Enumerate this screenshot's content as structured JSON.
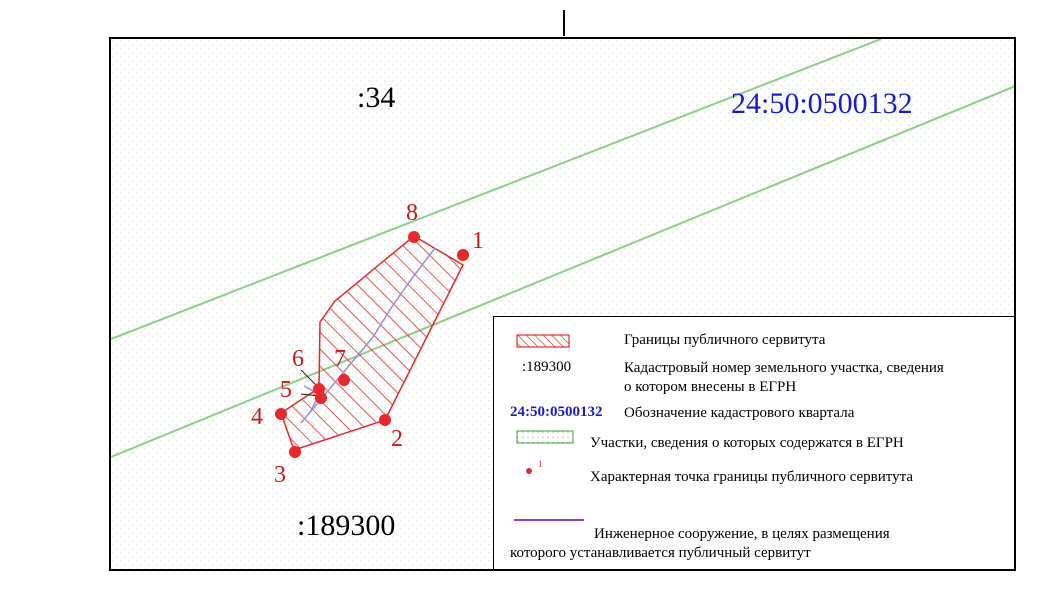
{
  "map": {
    "labels": {
      "parcel_neighbor": ":34",
      "quarter": "24:50:0500132",
      "parcel_main": ":189300"
    },
    "points": [
      "1",
      "2",
      "3",
      "4",
      "5",
      "6",
      "7",
      "8"
    ],
    "colors": {
      "servitude": "#e8282a",
      "parcel_lines": "#8fce8a",
      "quarter_text": "#1a1ad6",
      "engineering": "#9a3ac9"
    }
  },
  "legend": {
    "servitude_boundary": "Границы публичного сервитута",
    "cadastral_code_example": ":189300",
    "cadastral_number_line1": "Кадастровый номер  земельного участка, сведения",
    "cadastral_number_line2": "о котором внесены  в ЕГРН",
    "quarter_code_example": "24:50:0500132",
    "quarter_designation": "Обозначение кадастрового квартала",
    "parcels_in_registry": "Участки,  сведения о которых содержатся в  ЕГРН",
    "point_marker_example": "1",
    "characteristic_point": "Характерная точка границы публичного сервитута",
    "engineering_line1": "Инженерное сооружение, в целях размещения",
    "engineering_line2": "которого устанавливается публичный сервитут"
  }
}
